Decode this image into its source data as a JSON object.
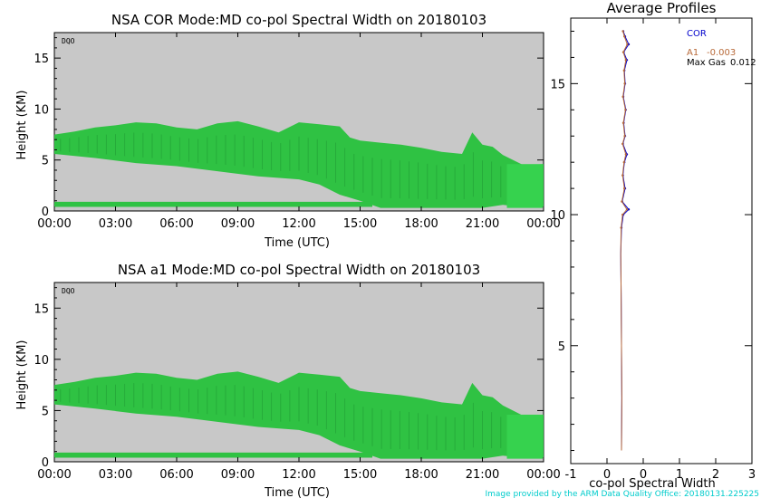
{
  "colors": {
    "panel_bg": "#c8c8c8",
    "echo": "#2fc243",
    "echo_dark": "#1f9a33",
    "cor": "#0000cc",
    "a1": "#b86a3a",
    "max_gas": "#000000",
    "footer": "#00cccc"
  },
  "footer_text": "Image provided by the ARM Data Quality Office: 20180131.225225",
  "chart_data": [
    {
      "type": "heatmap",
      "title": "NSA COR  Mode:MD  co-pol Spectral Width  on 20180103",
      "corner_label": "DQO",
      "xlabel": "Time (UTC)",
      "ylabel": "Height (KM)",
      "x_ticks": [
        "00:00",
        "03:00",
        "06:00",
        "09:00",
        "12:00",
        "15:00",
        "18:00",
        "21:00",
        "00:00"
      ],
      "y_ticks": [
        "0",
        "5",
        "10",
        "15"
      ],
      "xlim_hours": [
        0,
        24
      ],
      "ylim_km": [
        0,
        17.5
      ],
      "cloud_top_km": [
        [
          0,
          7.5
        ],
        [
          1,
          7.8
        ],
        [
          2,
          8.2
        ],
        [
          3,
          8.4
        ],
        [
          4,
          8.7
        ],
        [
          5,
          8.6
        ],
        [
          6,
          8.2
        ],
        [
          7,
          8.0
        ],
        [
          8,
          8.6
        ],
        [
          9,
          8.8
        ],
        [
          10,
          8.3
        ],
        [
          11,
          7.7
        ],
        [
          12,
          8.7
        ],
        [
          13,
          8.5
        ],
        [
          14,
          8.3
        ],
        [
          14.5,
          7.2
        ],
        [
          15,
          6.9
        ],
        [
          16,
          6.7
        ],
        [
          17,
          6.5
        ],
        [
          18,
          6.2
        ],
        [
          19,
          5.8
        ],
        [
          20,
          5.6
        ],
        [
          20.5,
          7.7
        ],
        [
          21,
          6.5
        ],
        [
          21.5,
          6.3
        ],
        [
          22,
          5.5
        ],
        [
          23,
          4.5
        ],
        [
          24,
          4.6
        ]
      ],
      "cloud_base_km": [
        [
          0,
          5.6
        ],
        [
          2,
          5.2
        ],
        [
          4,
          4.7
        ],
        [
          6,
          4.4
        ],
        [
          8,
          3.9
        ],
        [
          10,
          3.4
        ],
        [
          12,
          3.1
        ],
        [
          13,
          2.6
        ],
        [
          14,
          1.6
        ],
        [
          15,
          1.0
        ],
        [
          16,
          0.3
        ],
        [
          18,
          0.3
        ],
        [
          20,
          0.3
        ],
        [
          21,
          0.3
        ],
        [
          22,
          0.6
        ],
        [
          23,
          0.4
        ],
        [
          24,
          0.4
        ]
      ]
    },
    {
      "type": "heatmap",
      "title": "NSA a1  Mode:MD  co-pol Spectral Width  on 20180103",
      "corner_label": "DQO",
      "xlabel": "Time (UTC)",
      "ylabel": "Height (KM)",
      "x_ticks": [
        "00:00",
        "03:00",
        "06:00",
        "09:00",
        "12:00",
        "15:00",
        "18:00",
        "21:00",
        "00:00"
      ],
      "y_ticks": [
        "0",
        "5",
        "10",
        "15"
      ],
      "xlim_hours": [
        0,
        24
      ],
      "ylim_km": [
        0,
        17.5
      ],
      "cloud_top_km": [
        [
          0,
          7.5
        ],
        [
          1,
          7.8
        ],
        [
          2,
          8.2
        ],
        [
          3,
          8.4
        ],
        [
          4,
          8.7
        ],
        [
          5,
          8.6
        ],
        [
          6,
          8.2
        ],
        [
          7,
          8.0
        ],
        [
          8,
          8.6
        ],
        [
          9,
          8.8
        ],
        [
          10,
          8.3
        ],
        [
          11,
          7.7
        ],
        [
          12,
          8.7
        ],
        [
          13,
          8.5
        ],
        [
          14,
          8.3
        ],
        [
          14.5,
          7.2
        ],
        [
          15,
          6.9
        ],
        [
          16,
          6.7
        ],
        [
          17,
          6.5
        ],
        [
          18,
          6.2
        ],
        [
          19,
          5.8
        ],
        [
          20,
          5.6
        ],
        [
          20.5,
          7.7
        ],
        [
          21,
          6.5
        ],
        [
          21.5,
          6.3
        ],
        [
          22,
          5.5
        ],
        [
          23,
          4.5
        ],
        [
          24,
          4.6
        ]
      ],
      "cloud_base_km": [
        [
          0,
          5.6
        ],
        [
          2,
          5.2
        ],
        [
          4,
          4.7
        ],
        [
          6,
          4.4
        ],
        [
          8,
          3.9
        ],
        [
          10,
          3.4
        ],
        [
          12,
          3.1
        ],
        [
          13,
          2.6
        ],
        [
          14,
          1.6
        ],
        [
          15,
          1.0
        ],
        [
          16,
          0.3
        ],
        [
          18,
          0.3
        ],
        [
          20,
          0.3
        ],
        [
          21,
          0.3
        ],
        [
          22,
          0.6
        ],
        [
          23,
          0.4
        ],
        [
          24,
          0.4
        ]
      ]
    },
    {
      "type": "line",
      "title": "Average Profiles",
      "xlabel": "co-pol Spectral Width",
      "x_ticks": [
        "-1",
        "0",
        "0",
        "1",
        "2",
        "3"
      ],
      "y_ticks": [
        "5",
        "10",
        "15"
      ],
      "xlim": [
        -1,
        3
      ],
      "ylim_km": [
        0.5,
        17.5
      ],
      "legend": [
        {
          "name": "COR",
          "value": "",
          "color": "#0000cc"
        },
        {
          "name": "A1",
          "value": "-0.003",
          "color": "#b86a3a"
        },
        {
          "name": "Max Gas",
          "value": "0.012",
          "color": "#000000"
        }
      ],
      "series": [
        {
          "name": "COR",
          "points": [
            [
              0.4,
              1.0
            ],
            [
              0.41,
              3.0
            ],
            [
              0.4,
              5.0
            ],
            [
              0.39,
              7.0
            ],
            [
              0.38,
              8.5
            ],
            [
              0.4,
              9.5
            ],
            [
              0.45,
              10.0
            ],
            [
              0.6,
              10.2
            ],
            [
              0.42,
              10.5
            ],
            [
              0.5,
              11.0
            ],
            [
              0.44,
              11.5
            ],
            [
              0.48,
              12.0
            ],
            [
              0.55,
              12.3
            ],
            [
              0.44,
              12.7
            ],
            [
              0.5,
              13.0
            ],
            [
              0.46,
              13.5
            ],
            [
              0.52,
              14.0
            ],
            [
              0.45,
              14.5
            ],
            [
              0.5,
              15.0
            ],
            [
              0.48,
              15.5
            ],
            [
              0.55,
              15.9
            ],
            [
              0.46,
              16.2
            ],
            [
              0.6,
              16.5
            ],
            [
              0.5,
              16.8
            ],
            [
              0.45,
              17.0
            ]
          ]
        },
        {
          "name": "A1",
          "points": [
            [
              0.4,
              1.0
            ],
            [
              0.41,
              3.0
            ],
            [
              0.4,
              5.0
            ],
            [
              0.39,
              7.0
            ],
            [
              0.38,
              8.5
            ],
            [
              0.39,
              9.5
            ],
            [
              0.43,
              10.0
            ],
            [
              0.55,
              10.2
            ],
            [
              0.41,
              10.5
            ],
            [
              0.48,
              11.0
            ],
            [
              0.43,
              11.5
            ],
            [
              0.47,
              12.0
            ],
            [
              0.52,
              12.3
            ],
            [
              0.43,
              12.7
            ],
            [
              0.49,
              13.0
            ],
            [
              0.45,
              13.5
            ],
            [
              0.51,
              14.0
            ],
            [
              0.44,
              14.5
            ],
            [
              0.49,
              15.0
            ],
            [
              0.47,
              15.5
            ],
            [
              0.52,
              15.9
            ],
            [
              0.45,
              16.2
            ],
            [
              0.56,
              16.5
            ],
            [
              0.48,
              16.8
            ],
            [
              0.44,
              17.0
            ]
          ]
        }
      ]
    }
  ]
}
